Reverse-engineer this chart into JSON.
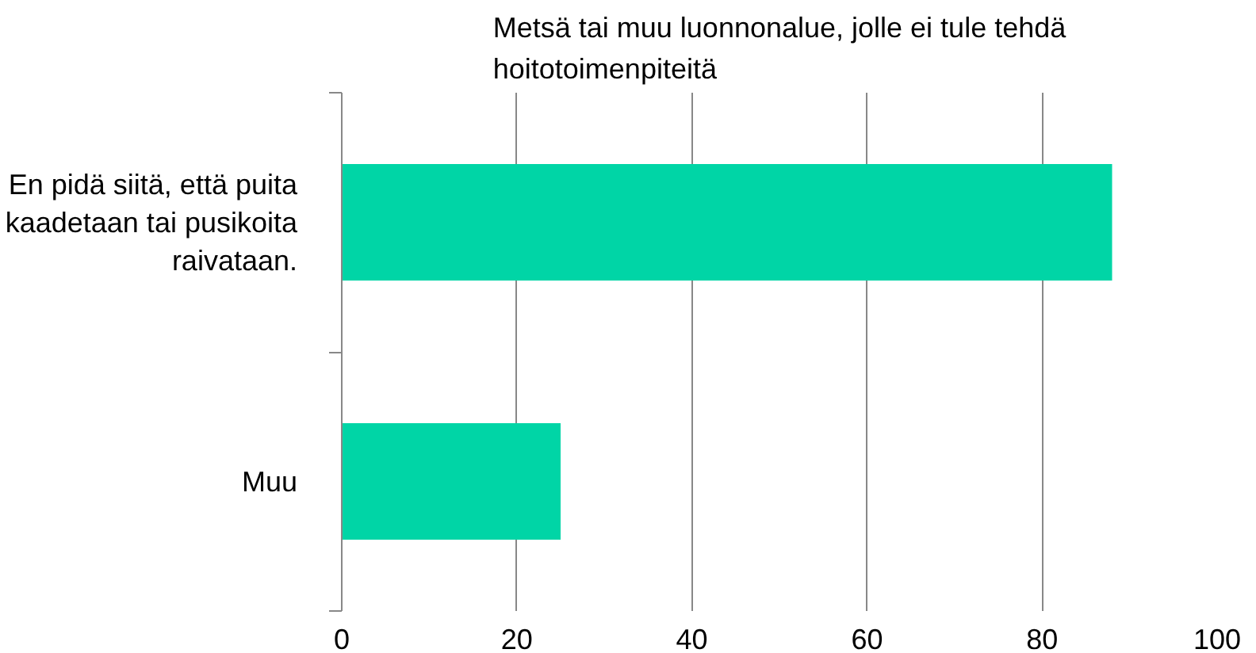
{
  "chart_data": {
    "type": "bar",
    "orientation": "horizontal",
    "title": "Metsä tai muu luonnonalue, jolle ei tule tehdä hoitotoimenpiteitä",
    "categories": [
      "En pidä siitä, että puita kaadetaan tai pusikoita raivataan.",
      "Muu"
    ],
    "values": [
      88,
      25
    ],
    "color": "#00d5a6",
    "xlim": [
      0,
      100
    ],
    "xticks": [
      0,
      20,
      40,
      60,
      80,
      100
    ],
    "grid": "x"
  }
}
